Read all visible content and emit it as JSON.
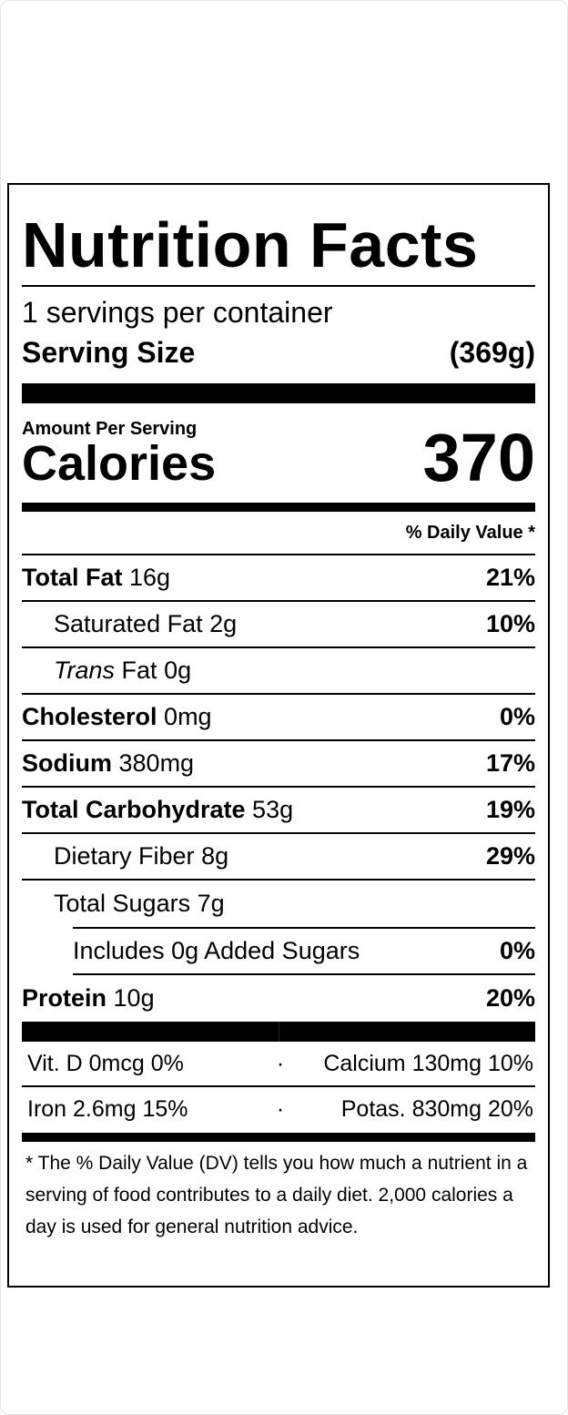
{
  "title": "Nutrition Facts",
  "servings_per_container": "1 servings per container",
  "serving_size": {
    "label": "Serving Size",
    "value": "(369g)"
  },
  "amount_per_serving": "Amount Per Serving",
  "calories": {
    "label": "Calories",
    "value": "370"
  },
  "daily_value_header": "% Daily Value *",
  "nutrients": [
    {
      "name": "Total Fat",
      "amount": "16g",
      "dv": "21%"
    },
    {
      "name": "Saturated Fat",
      "amount": "2g",
      "dv": "10%"
    },
    {
      "name": "Trans",
      "name_suffix": "Fat",
      "amount": "0g",
      "dv": ""
    },
    {
      "name": "Cholesterol",
      "amount": "0mg",
      "dv": "0%"
    },
    {
      "name": "Sodium",
      "amount": "380mg",
      "dv": "17%"
    },
    {
      "name": "Total Carbohydrate",
      "amount": "53g",
      "dv": "19%"
    },
    {
      "name": "Dietary Fiber",
      "amount": "8g",
      "dv": "29%"
    },
    {
      "name": "Total Sugars",
      "amount": "7g",
      "dv": ""
    },
    {
      "name": "Includes 0g Added Sugars",
      "amount": "",
      "dv": "0%"
    },
    {
      "name": "Protein",
      "amount": "10g",
      "dv": "20%"
    }
  ],
  "vitamins": [
    {
      "left": "Vit. D 0mcg 0%",
      "sep": "·",
      "right": "Calcium 130mg 10%"
    },
    {
      "left": "Iron 2.6mg 15%",
      "sep": "·",
      "right": "Potas. 830mg 20%"
    }
  ],
  "footnote": "* The % Daily Value (DV) tells you how much a nutrient in a serving of food contributes to a daily diet. 2,000 calories a day is used for general nutrition advice."
}
